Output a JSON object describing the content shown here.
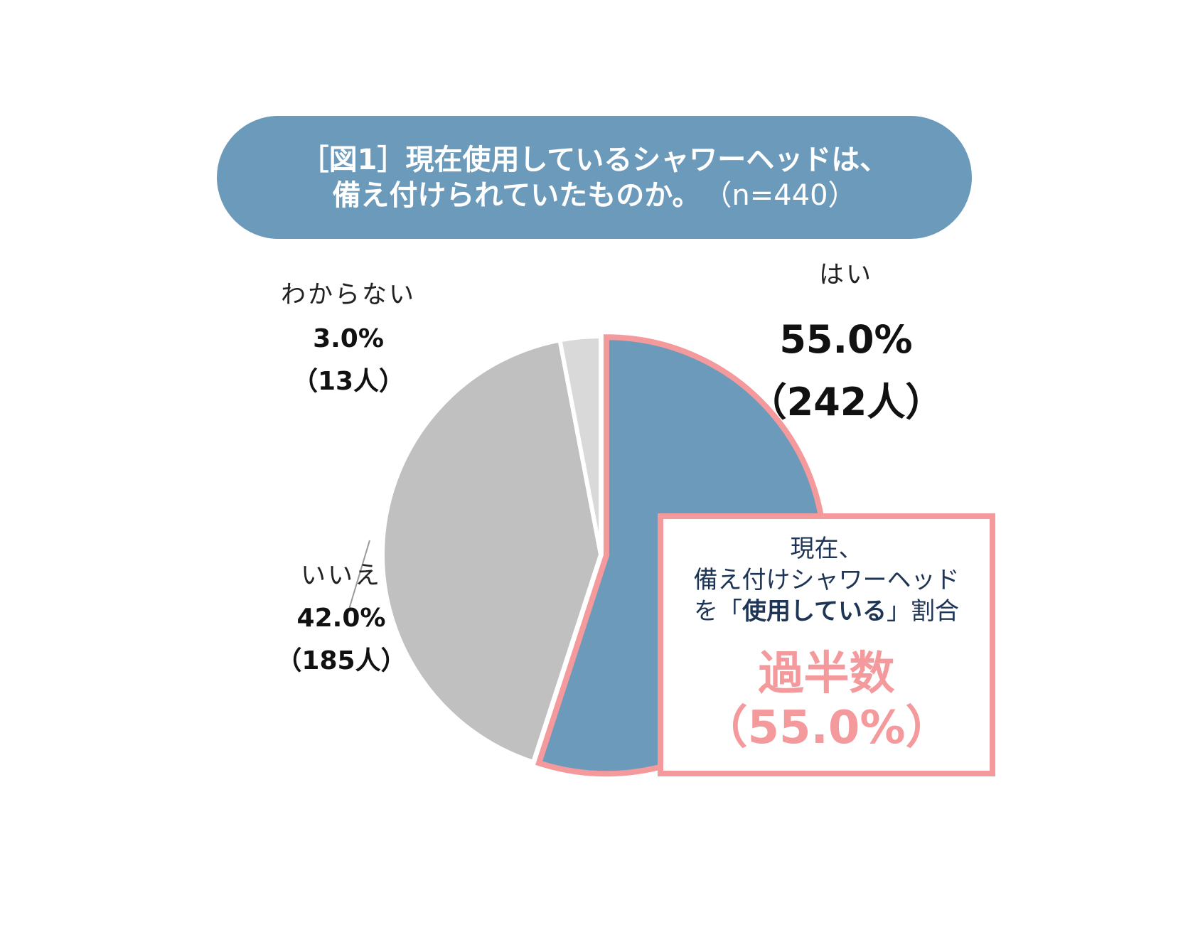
{
  "header": {
    "title_line1": "［図1］現在使用しているシャワーヘッドは、",
    "title_line2": "備え付けられていたものか。",
    "sample_note": "（n=440）"
  },
  "chart_data": {
    "type": "pie",
    "title": "［図1］現在使用しているシャワーヘッドは、備え付けられていたものか。",
    "sample_size": 440,
    "slices": [
      {
        "category": "はい",
        "percent": 55.0,
        "count": 242,
        "percent_label": "55.0%",
        "count_label": "（242人）",
        "color": "#6c9aba",
        "highlighted": true
      },
      {
        "category": "いいえ",
        "percent": 42.0,
        "count": 185,
        "percent_label": "42.0%",
        "count_label": "（185人）",
        "color": "#c0c0c0",
        "highlighted": false
      },
      {
        "category": "わからない",
        "percent": 3.0,
        "count": 13,
        "percent_label": "3.0%",
        "count_label": "（13人）",
        "color": "#d9d9d9",
        "highlighted": false
      }
    ]
  },
  "callout": {
    "line1": "現在、",
    "line2": "備え付けシャワーヘッド",
    "line3_prefix": "を「",
    "line3_strong": "使用している",
    "line3_suffix": "」割合",
    "highlight_line1": "過半数",
    "highlight_line2": "（55.0%）"
  },
  "colors": {
    "title_bg": "#6c9aba",
    "highlight_border": "#f4999c",
    "callout_text": "#1f3556"
  }
}
